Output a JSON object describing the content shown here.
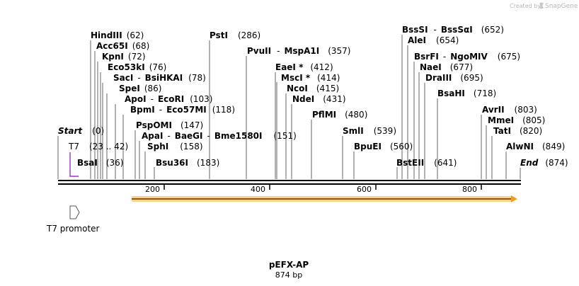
{
  "plasmid": {
    "name": "pEFX-AP",
    "length_label": "874 bp",
    "length": 874
  },
  "credit": {
    "prefix": "Created by",
    "brand": "SnapGene"
  },
  "ends": {
    "start": "Start",
    "start_pos": "(0)",
    "end": "End",
    "end_pos": "(874)"
  },
  "ruler": {
    "ticks": [
      "200",
      "400",
      "600",
      "800"
    ]
  },
  "primer": {
    "name": "T7",
    "range": "(23 .. 42)",
    "color": "#9b30d9"
  },
  "feature": {
    "name": "T7 promoter"
  },
  "orf": {
    "color": "#f0a020"
  },
  "sites": [
    {
      "name": "HindIII",
      "pos": "(62)"
    },
    {
      "name": "Acc65I",
      "pos": "(68)"
    },
    {
      "name": "KpnI",
      "pos": "(72)"
    },
    {
      "name": "Eco53kI",
      "pos": "(76)"
    },
    {
      "name": "SacI",
      "sep": "-",
      "name2": "BsiHKAI",
      "pos": "(78)"
    },
    {
      "name": "SpeI",
      "pos": "(86)"
    },
    {
      "name": "ApoI",
      "sep": "-",
      "name2": "EcoRI",
      "pos": "(103)"
    },
    {
      "name": "BpmI",
      "sep": "-",
      "name2": "Eco57MI",
      "pos": "(118)"
    },
    {
      "name": "PspOMI",
      "pos": "(147)"
    },
    {
      "name": "ApaI",
      "sep": "-",
      "name2": "BaeGI",
      "sep2": "-",
      "name3": "Bme1580I",
      "pos": "(151)"
    },
    {
      "name": "SphI",
      "pos": "(158)"
    },
    {
      "name": "BsaI",
      "pos": "(36)"
    },
    {
      "name": "Bsu36I",
      "pos": "(183)"
    },
    {
      "name": "PstI",
      "pos": "(286)"
    },
    {
      "name": "PvuII",
      "sep": "-",
      "name2": "MspA1I",
      "pos": "(357)"
    },
    {
      "name": "EaeI *",
      "pos": "(412)"
    },
    {
      "name": "MscI *",
      "pos": "(414)"
    },
    {
      "name": "NcoI",
      "pos": "(415)"
    },
    {
      "name": "NdeI",
      "pos": "(431)"
    },
    {
      "name": "PflMI",
      "pos": "(480)"
    },
    {
      "name": "SmlI",
      "pos": "(539)"
    },
    {
      "name": "BpuEI",
      "pos": "(560)"
    },
    {
      "name": "BstEII",
      "pos": "(641)"
    },
    {
      "name": "BssSI",
      "sep": "-",
      "name2": "BssSαI",
      "pos": "(652)"
    },
    {
      "name": "AleI",
      "pos": "(654)"
    },
    {
      "name": "BsrFI",
      "sep": "-",
      "name2": "NgoMIV",
      "pos": "(675)"
    },
    {
      "name": "NaeI",
      "pos": "(677)"
    },
    {
      "name": "DraIII",
      "pos": "(695)"
    },
    {
      "name": "BsaHI",
      "pos": "(718)"
    },
    {
      "name": "AvrII",
      "pos": "(803)"
    },
    {
      "name": "MmeI",
      "pos": "(805)"
    },
    {
      "name": "TatI",
      "pos": "(820)"
    },
    {
      "name": "AlwNI",
      "pos": "(849)"
    }
  ]
}
